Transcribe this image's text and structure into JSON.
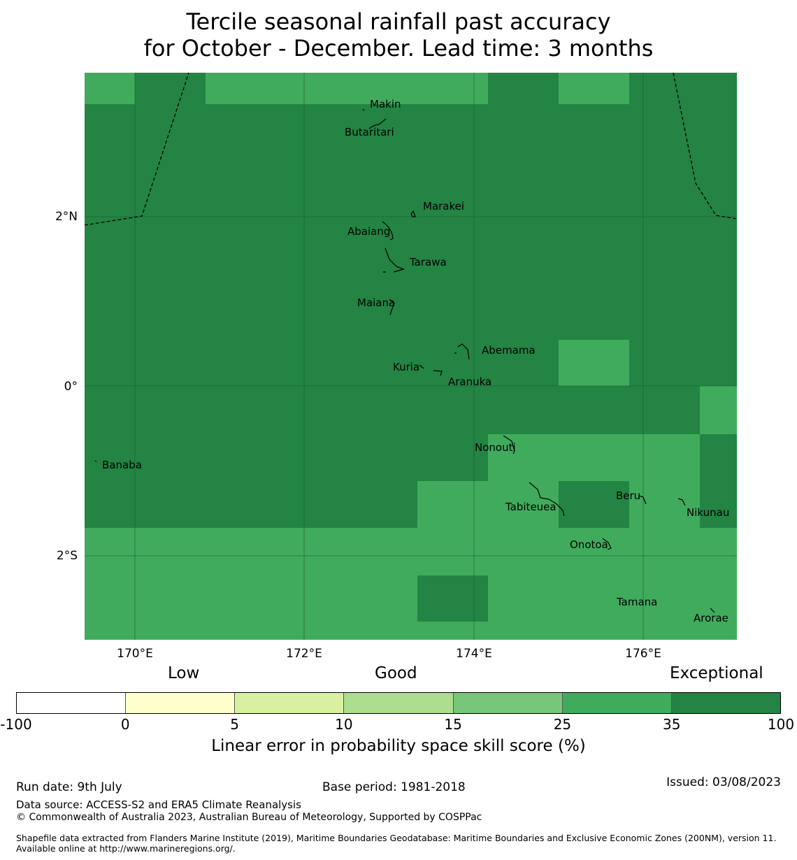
{
  "header": {
    "title_line1": "Tercile seasonal rainfall past accuracy",
    "title_line2": "for October - December. Lead time: 3 months"
  },
  "map": {
    "lon_ticks": [
      "170°E",
      "172°E",
      "174°E",
      "176°E"
    ],
    "lat_ticks": [
      "2°N",
      "0°",
      "2°S"
    ],
    "colors": {
      "exceptional": "#238443",
      "band_25_35": "#41ab5d",
      "grid": "#1a5e30"
    },
    "places": [
      "Makin",
      "Butaritari",
      "Marakei",
      "Abaiang",
      "Tarawa",
      "Maiana",
      "Abemama",
      "Kuria",
      "Aranuka",
      "Nonouti",
      "Banaba",
      "Tabiteuea",
      "Beru",
      "Nikunau",
      "Onotoa",
      "Tamana",
      "Arorae"
    ]
  },
  "legend": {
    "category_low": "Low",
    "category_good": "Good",
    "category_exceptional": "Exceptional",
    "ticks": [
      "-100",
      "0",
      "5",
      "10",
      "15",
      "25",
      "35",
      "100"
    ],
    "colors": [
      "#ffffff",
      "#ffffcc",
      "#d9f0a3",
      "#addd8e",
      "#78c679",
      "#41ab5d",
      "#238443"
    ],
    "title": "Linear error in probability space skill score (%)"
  },
  "footer": {
    "run_date": "Run date: 9th July",
    "base_period": "Base period: 1981-2018",
    "issued": "Issued: 03/08/2023",
    "data_source": "Data source: ACCESS-S2 and ERA5 Climate Reanalysis",
    "copyright": "© Commonwealth of Australia 2023, Australian Bureau of Meteorology, Supported by COSPPac",
    "shapefile": "Shapefile data extracted from Flanders Marine Institute (2019), Maritime Boundaries Geodatabase: Maritime Boundaries and Exclusive Economic Zones (200NM), version 11. Available online at http://www.marineregions.org/."
  }
}
